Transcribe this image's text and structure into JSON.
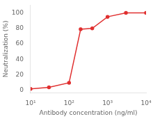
{
  "chart_data": {
    "type": "line",
    "x": [
      10,
      30,
      100,
      200,
      400,
      1000,
      3000,
      10000
    ],
    "values": [
      2,
      4,
      10,
      79,
      80,
      95,
      100,
      100
    ],
    "color": "#e03030",
    "marker": "o",
    "xlabel": "Antibody concentration (ng/ml)",
    "ylabel": "Neutralization (%)",
    "log": "x",
    "xlim": [
      10,
      10000
    ],
    "xticks": [
      {
        "value": 10,
        "label": "10¹"
      },
      {
        "value": 100,
        "label": "10²"
      },
      {
        "value": 1000,
        "label": "10³"
      },
      {
        "value": 10000,
        "label": "10⁴"
      }
    ],
    "ylim": [
      -3,
      110
    ],
    "yticks": [
      0,
      20,
      40,
      60,
      80,
      100
    ],
    "grid": false
  }
}
